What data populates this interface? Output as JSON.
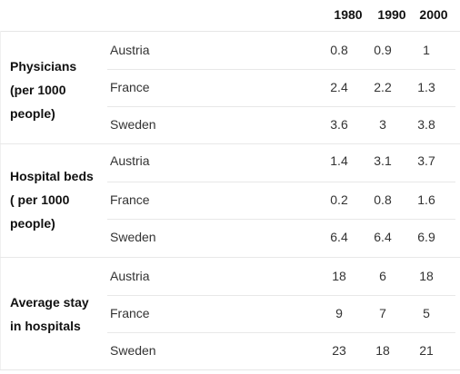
{
  "years": [
    "1980",
    "1990",
    "2000"
  ],
  "groups": [
    {
      "title_lines": [
        "Physicians",
        "(per 1000",
        "people)"
      ],
      "rows": [
        {
          "country": "Austria",
          "values": [
            "0.8",
            "0.9",
            "1"
          ]
        },
        {
          "country": "France",
          "values": [
            "2.4",
            "2.2",
            "1.3"
          ]
        },
        {
          "country": "Sweden",
          "values": [
            "3.6",
            "3",
            "3.8"
          ]
        }
      ]
    },
    {
      "title_lines": [
        "Hospital beds",
        "( per 1000",
        "people)"
      ],
      "rows": [
        {
          "country": "Austria",
          "values": [
            "1.4",
            "3.1",
            "3.7"
          ]
        },
        {
          "country": "France",
          "values": [
            "0.2",
            "0.8",
            "1.6"
          ]
        },
        {
          "country": "Sweden",
          "values": [
            "6.4",
            "6.4",
            "6.9"
          ]
        }
      ]
    },
    {
      "title_lines": [
        "Average stay",
        "in hospitals"
      ],
      "rows": [
        {
          "country": "Austria",
          "values": [
            "18",
            "6",
            "18"
          ]
        },
        {
          "country": "France",
          "values": [
            "9",
            "7",
            "5"
          ]
        },
        {
          "country": "Sweden",
          "values": [
            "23",
            "18",
            "21"
          ]
        }
      ]
    }
  ]
}
